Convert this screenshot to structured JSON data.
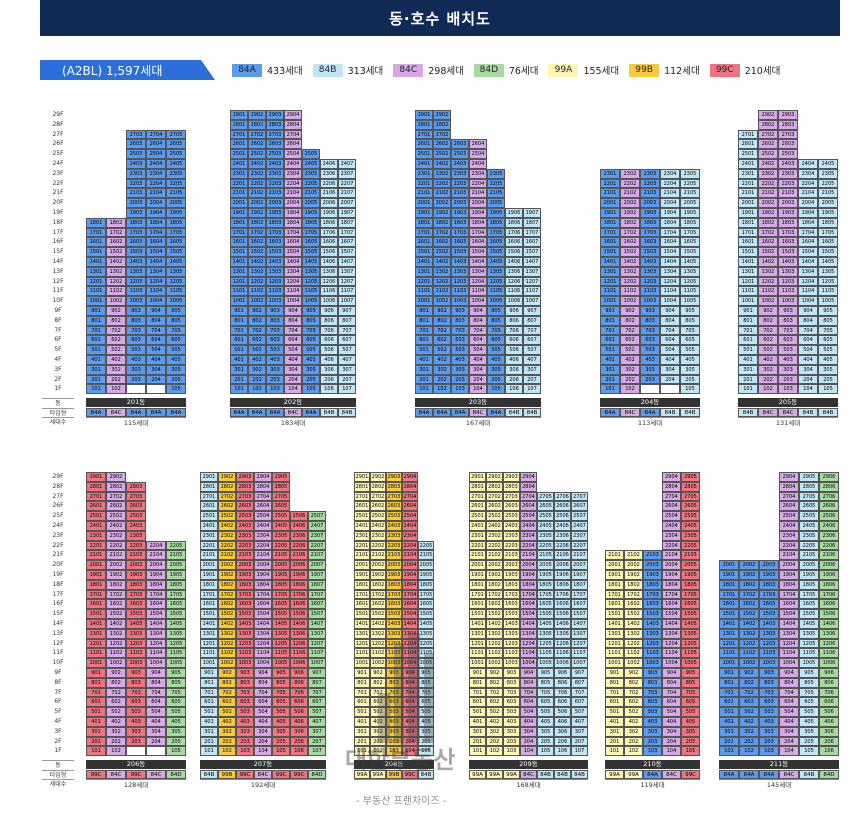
{
  "title": "동·호수 배치도",
  "summary": "(A2BL) 1,597세대",
  "legend": [
    {
      "code": "84A",
      "count": "433세대",
      "color": "#5b9bed"
    },
    {
      "code": "84B",
      "count": "313세대",
      "color": "#bfe6f6"
    },
    {
      "code": "84C",
      "count": "298세대",
      "color": "#d7a8e6"
    },
    {
      "code": "84D",
      "count": "76세대",
      "color": "#a6dba0"
    },
    {
      "code": "99A",
      "count": "155세대",
      "color": "#fff6b3"
    },
    {
      "code": "99B",
      "count": "112세대",
      "color": "#f5cb3c"
    },
    {
      "code": "99C",
      "count": "210세대",
      "color": "#f0747f"
    }
  ],
  "floors": [
    "29F",
    "28F",
    "27F",
    "26F",
    "25F",
    "24F",
    "23F",
    "22F",
    "21F",
    "20F",
    "19F",
    "18F",
    "17F",
    "16F",
    "15F",
    "14F",
    "13F",
    "12F",
    "11F",
    "10F",
    "9F",
    "8F",
    "7F",
    "6F",
    "5F",
    "4F",
    "3F",
    "2F",
    "1F"
  ],
  "row_labels": {
    "building": "동",
    "type": "타입형",
    "households": "세대수"
  },
  "buildings": [
    {
      "name": "201동",
      "households": "115세대",
      "types": [
        "84A",
        "84C",
        "84A",
        "84A",
        "84A"
      ],
      "tops": [
        18,
        18,
        27,
        27,
        27
      ],
      "bottoms": [
        1,
        1,
        2,
        2,
        1
      ],
      "special": {
        "2": "",
        "3": "",
        "4": ""
      }
    },
    {
      "name": "202동",
      "households": "183세대",
      "types": [
        "84A",
        "84A",
        "84A",
        "84C",
        "84A",
        "84B",
        "84B"
      ],
      "tops": [
        29,
        29,
        29,
        29,
        25,
        24,
        24
      ],
      "bottoms": [
        1,
        1,
        1,
        1,
        1,
        1,
        1
      ],
      "special": {
        "2": "북클럽",
        "3": "",
        "4": "키즈클럽"
      }
    },
    {
      "name": "203동",
      "households": "167세대",
      "types": [
        "84A",
        "84A",
        "84A",
        "84C",
        "84A",
        "84B",
        "84B"
      ],
      "tops": [
        29,
        29,
        26,
        26,
        23,
        19,
        19
      ],
      "bottoms": [
        1,
        1,
        1,
        1,
        1,
        1,
        1
      ],
      "special": {
        "0": "실버클럽",
        "1": ""
      }
    },
    {
      "name": "204동",
      "households": "113세대",
      "types": [
        "84A",
        "84C",
        "84A",
        "84B",
        "84B"
      ],
      "tops": [
        23,
        23,
        23,
        23,
        23
      ],
      "bottoms": [
        1,
        1,
        2,
        2,
        1
      ],
      "special": {
        "2": "",
        "3": ""
      }
    },
    {
      "name": "205동",
      "households": "131세대",
      "types": [
        "84B",
        "84C",
        "84C",
        "84B",
        "84B"
      ],
      "tops": [
        27,
        29,
        29,
        24,
        24
      ],
      "bottoms": [
        1,
        1,
        1,
        1,
        1
      ],
      "special": {
        "2": "",
        "3": ""
      }
    },
    {
      "name": "206동",
      "households": "128세대",
      "types": [
        "99C",
        "84C",
        "99C",
        "84C",
        "84D"
      ],
      "tops": [
        29,
        29,
        28,
        22,
        22
      ],
      "bottoms": [
        1,
        1,
        2,
        2,
        1
      ],
      "special": {
        "2": "",
        "3": ""
      }
    },
    {
      "name": "207동",
      "households": "192세대",
      "types": [
        "84B",
        "99B",
        "99C",
        "84C",
        "99C",
        "99C",
        "84D"
      ],
      "tops": [
        29,
        29,
        29,
        29,
        29,
        25,
        25
      ],
      "bottoms": [
        1,
        1,
        1,
        1,
        1,
        1,
        1
      ],
      "special": {
        "2": "",
        "3": ""
      }
    },
    {
      "name": "208동",
      "households": "",
      "types": [
        "99A",
        "99A",
        "99B",
        "99C",
        "84B"
      ],
      "tops": [
        29,
        29,
        29,
        29,
        22
      ],
      "bottoms": [
        1,
        1,
        1,
        1,
        1
      ],
      "special": {}
    },
    {
      "name": "209동",
      "households": "168세대",
      "types": [
        "99A",
        "99A",
        "99A",
        "84C",
        "84B",
        "84B",
        "84B"
      ],
      "tops": [
        29,
        29,
        29,
        29,
        27,
        27,
        27
      ],
      "bottoms": [
        1,
        1,
        1,
        1,
        1,
        1,
        1
      ],
      "special": {}
    },
    {
      "name": "210동",
      "households": "119세대",
      "types": [
        "99A",
        "99A",
        "84A",
        "84C",
        "99C"
      ],
      "tops": [
        21,
        21,
        21,
        29,
        29
      ],
      "bottoms": [
        1,
        1,
        1,
        1,
        1
      ],
      "special": {
        "2": ""
      }
    },
    {
      "name": "211동",
      "households": "145세대",
      "types": [
        "84A",
        "84A",
        "84A",
        "84C",
        "84B",
        "84D"
      ],
      "tops": [
        20,
        20,
        20,
        29,
        29,
        29
      ],
      "bottoms": [
        1,
        1,
        1,
        1,
        1,
        1
      ],
      "special": {
        "2": ""
      }
    }
  ],
  "watermark": "대한부동산",
  "watermark_sub": "- 부동산 프랜차이즈 -"
}
